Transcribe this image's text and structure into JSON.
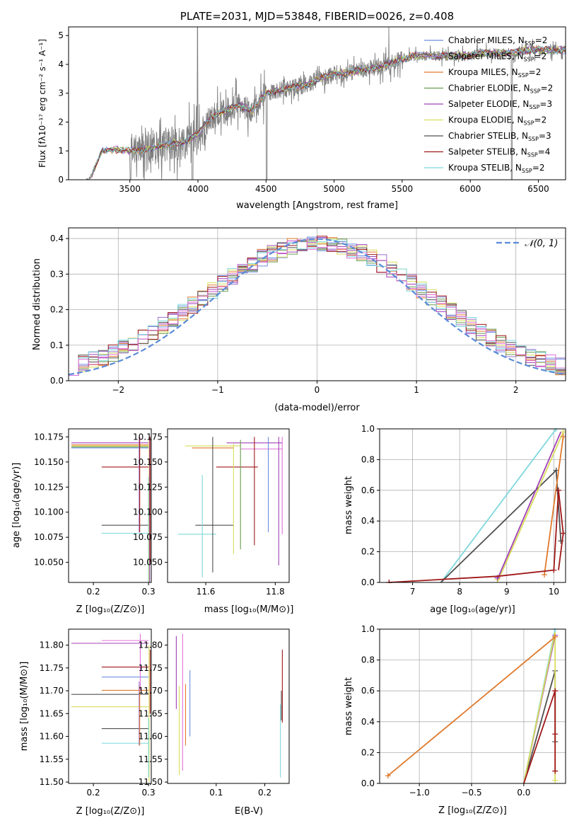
{
  "colors": {
    "Chabrier MILES": "#6c8ee0",
    "Salpeter MILES": "#9b70c8",
    "Kroupa MILES": "#e07a2e",
    "Chabrier ELODIE": "#6a9c50",
    "Salpeter ELODIE": "#a040b8",
    "Kroupa ELODIE": "#d8dd5a",
    "Chabrier STELIB": "#505050",
    "Salpeter STELIB": "#a01818",
    "Kroupa STELIB": "#7dd8dc",
    "extra": "#e070d8",
    "data": "#7f7f7f",
    "gauss": "#5b8bd8"
  },
  "panels": {
    "spectrum": {
      "title": "PLATE=2031, MJD=53848, FIBERID=0026, z=0.408",
      "xlabel": "wavelength [Angstrom, rest frame]",
      "ylabel": "Flux [fλ10⁻¹⁷ erg cm⁻² s⁻¹ A⁻¹]",
      "xticks": [
        "3500",
        "4000",
        "4500",
        "5000",
        "5500",
        "6000",
        "6500"
      ],
      "yticks": [
        "0",
        "1",
        "2",
        "3",
        "4",
        "5"
      ],
      "legend": [
        {
          "name": "Chabrier MILES",
          "n": "2"
        },
        {
          "name": "Salpeter MILES",
          "n": "2"
        },
        {
          "name": "Kroupa MILES",
          "n": "2"
        },
        {
          "name": "Chabrier ELODIE",
          "n": "2"
        },
        {
          "name": "Salpeter ELODIE",
          "n": "3"
        },
        {
          "name": "Kroupa ELODIE",
          "n": "2"
        },
        {
          "name": "Chabrier STELIB",
          "n": "3"
        },
        {
          "name": "Salpeter STELIB",
          "n": "4"
        },
        {
          "name": "Kroupa STELIB",
          "n": "2"
        }
      ]
    },
    "residuals": {
      "xlabel": "(data-model)/error",
      "ylabel": "Normed distribution",
      "xticks": [
        "−2",
        "−1",
        "0",
        "1",
        "2"
      ],
      "yticks": [
        "0.0",
        "0.1",
        "0.2",
        "0.3",
        "0.4"
      ],
      "legend_label": "𝒩(0, 1)"
    },
    "age_z": {
      "xlabel": "Z [log₁₀(Z/Z⊙)]",
      "ylabel": "age  [log₁₀(age/yr)]",
      "xticks": [
        "0.2",
        "0.3"
      ],
      "yticks": [
        "10.050",
        "10.075",
        "10.100",
        "10.125",
        "10.150",
        "10.175"
      ]
    },
    "age_mass": {
      "xlabel": "mass [log₁₀(M/M⊙)]",
      "xticks": [
        "11.6",
        "11.8"
      ],
      "yticks": [
        "10.050",
        "10.075",
        "10.100",
        "10.125",
        "10.150",
        "10.175"
      ]
    },
    "mw_age": {
      "xlabel": "age  [log₁₀(age/yr)]",
      "ylabel": "mass weight",
      "xticks": [
        "7",
        "8",
        "9",
        "10"
      ],
      "yticks": [
        "0.0",
        "0.2",
        "0.4",
        "0.6",
        "0.8",
        "1.0"
      ]
    },
    "mass_z": {
      "xlabel": "Z [log₁₀(Z/Z⊙)]",
      "ylabel": "mass [log₁₀(M/M⊙)]",
      "xticks": [
        "0.2",
        "0.3"
      ],
      "yticks": [
        "11.50",
        "11.55",
        "11.60",
        "11.65",
        "11.70",
        "11.75",
        "11.80"
      ]
    },
    "mass_ebv": {
      "xlabel": "E(B-V)",
      "xticks": [
        "0.1",
        "0.2"
      ],
      "yticks": [
        "11.50",
        "11.55",
        "11.60",
        "11.65",
        "11.70",
        "11.75",
        "11.80"
      ]
    },
    "mw_z": {
      "xlabel": "Z [log₁₀(Z/Z⊙)]",
      "ylabel": "mass weight",
      "xticks": [
        "−1.0",
        "−0.5",
        "0.0"
      ],
      "yticks": [
        "0.0",
        "0.2",
        "0.4",
        "0.6",
        "0.8",
        "1.0"
      ]
    }
  },
  "chart_data": [
    {
      "type": "line",
      "title": "PLATE=2031, MJD=53848, FIBERID=0026, z=0.408",
      "xlabel": "wavelength [Angstrom, rest frame]",
      "ylabel": "Flux [fλ10⁻¹⁷ erg cm⁻² s⁻¹ A⁻¹]",
      "xlim": [
        3050,
        6700
      ],
      "ylim": [
        0,
        5.3
      ],
      "legend_position": "upper-right",
      "x": [
        3200,
        3300,
        3400,
        3500,
        3600,
        3700,
        3800,
        3900,
        4000,
        4100,
        4200,
        4300,
        4400,
        4500,
        4600,
        4700,
        4800,
        4900,
        5000,
        5100,
        5200,
        5300,
        5400,
        5500,
        5600,
        5700,
        5800,
        5900,
        6000,
        6100,
        6200,
        6300,
        6400,
        6500,
        6600
      ],
      "series": [
        {
          "name": "data",
          "values": [
            0,
            1.0,
            1.05,
            1.0,
            1.05,
            1.15,
            1.25,
            1.3,
            1.6,
            2.2,
            2.4,
            2.6,
            2.4,
            3.0,
            3.1,
            3.2,
            3.3,
            3.5,
            3.7,
            3.7,
            3.8,
            3.9,
            4.0,
            4.2,
            4.3,
            4.3,
            4.3,
            4.3,
            4.3,
            4.4,
            4.4,
            4.4,
            4.5,
            4.5,
            4.5
          ]
        },
        {
          "name": "model",
          "values": [
            0,
            1.0,
            1.05,
            1.0,
            1.05,
            1.15,
            1.2,
            1.3,
            1.6,
            2.2,
            2.4,
            2.6,
            2.4,
            3.0,
            3.1,
            3.2,
            3.3,
            3.5,
            3.7,
            3.7,
            3.8,
            3.9,
            4.0,
            4.2,
            4.3,
            4.3,
            4.3,
            4.3,
            4.3,
            4.4,
            4.4,
            4.4,
            4.5,
            4.5,
            4.5
          ]
        }
      ]
    },
    {
      "type": "line",
      "xlabel": "(data-model)/error",
      "ylabel": "Normed distribution",
      "xlim": [
        -2.5,
        2.5
      ],
      "ylim": [
        0,
        0.43
      ],
      "grid": true,
      "legend_position": "upper-right",
      "series": [
        {
          "name": "𝒩(0, 1)",
          "mean": 0,
          "sigma": 1
        }
      ]
    },
    {
      "type": "scatter",
      "xlabel": "Z [log₁₀(Z/Z⊙)]",
      "ylabel": "age  [log₁₀(age/yr)]",
      "xlim": [
        0.155,
        0.305
      ],
      "ylim": [
        10.03,
        10.183
      ]
    },
    {
      "type": "scatter",
      "xlabel": "mass [log₁₀(M/M⊙)]",
      "ylabel": "age  [log₁₀(age/yr)]",
      "xlim": [
        11.49,
        11.84
      ],
      "ylim": [
        10.03,
        10.183
      ]
    },
    {
      "type": "line",
      "xlabel": "age  [log₁₀(age/yr)]",
      "ylabel": "mass weight",
      "xlim": [
        6.3,
        10.25
      ],
      "ylim": [
        0,
        1.0
      ],
      "grid": true
    },
    {
      "type": "scatter",
      "xlabel": "Z [log₁₀(Z/Z⊙)]",
      "ylabel": "mass [log₁₀(M/M⊙)]",
      "xlim": [
        0.155,
        0.305
      ],
      "ylim": [
        11.497,
        11.835
      ]
    },
    {
      "type": "scatter",
      "xlabel": "E(B-V)",
      "ylabel": "mass [log₁₀(M/M⊙)]",
      "xlim": [
        0.0,
        0.25
      ],
      "ylim": [
        11.497,
        11.835
      ]
    },
    {
      "type": "line",
      "xlabel": "Z [log₁₀(Z/Z⊙)]",
      "ylabel": "mass weight",
      "xlim": [
        -1.38,
        0.4
      ],
      "ylim": [
        0,
        1.0
      ],
      "grid": true
    }
  ]
}
